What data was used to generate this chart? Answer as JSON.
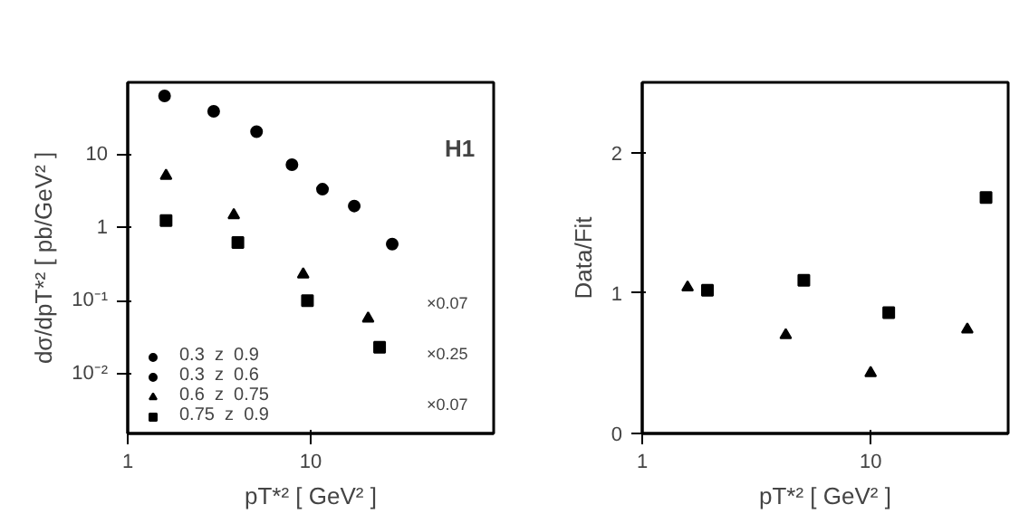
{
  "chart_data": [
    {
      "type": "scatter",
      "xlabel": "pT*² [ GeV² ]",
      "ylabel": "dσ/dpT*² [ pb/GeV² ]",
      "log": "xy",
      "grid": false,
      "legend": "bottom left",
      "xlim": [
        1,
        100
      ],
      "xticks": [
        1,
        10
      ],
      "ylim": [
        0.0015,
        100
      ],
      "yticks": [
        {
          "value": 0.01,
          "label": "10⁻²"
        },
        {
          "value": 0.1,
          "label": "10⁻¹"
        },
        1,
        10
      ],
      "annotations": [
        "H1",
        "×0.07",
        "×0.25",
        "×0.07"
      ],
      "series": [
        {
          "name": "0.3  z  0.9",
          "color": "#000000",
          "marker": "circle",
          "x": [
            1.59,
            7.9,
            11.6,
            27.9
          ],
          "values": [
            65,
            7.4,
            3.4,
            0.6
          ]
        },
        {
          "name": "0.3  z  0.6",
          "color": "#000000",
          "marker": "circle",
          "x": [
            2.95,
            5.06,
            17.3
          ],
          "values": [
            40,
            21,
            2.0
          ]
        },
        {
          "name": "0.6  z  0.75",
          "color": "#000000",
          "marker": "triangle",
          "x": [
            1.62,
            3.8,
            9.1,
            20.6
          ],
          "values": [
            5.2,
            1.5,
            0.23,
            0.057
          ]
        },
        {
          "name": "0.75  z  0.9",
          "color": "#000000",
          "marker": "square",
          "x": [
            1.62,
            4.0,
            9.6,
            23.8
          ],
          "values": [
            1.26,
            0.63,
            0.1,
            0.023
          ]
        }
      ]
    },
    {
      "type": "scatter",
      "xlabel": "pT*² [ GeV² ]",
      "ylabel": "Data/Fit",
      "log": "x",
      "grid": false,
      "xlim": [
        1,
        40
      ],
      "xticks": [
        1,
        10
      ],
      "ylim": [
        0,
        2.5
      ],
      "yticks": [
        0,
        1,
        2
      ],
      "series": [
        {
          "color": "#000000",
          "marker": "triangle",
          "x": [
            1.58,
            4.25,
            10,
            26.5
          ],
          "values": [
            1.04,
            0.7,
            0.43,
            0.74
          ]
        },
        {
          "color": "#000000",
          "marker": "square",
          "x": [
            1.93,
            5.1,
            12,
            32
          ],
          "values": [
            1.02,
            1.09,
            0.86,
            1.68
          ]
        }
      ]
    }
  ]
}
